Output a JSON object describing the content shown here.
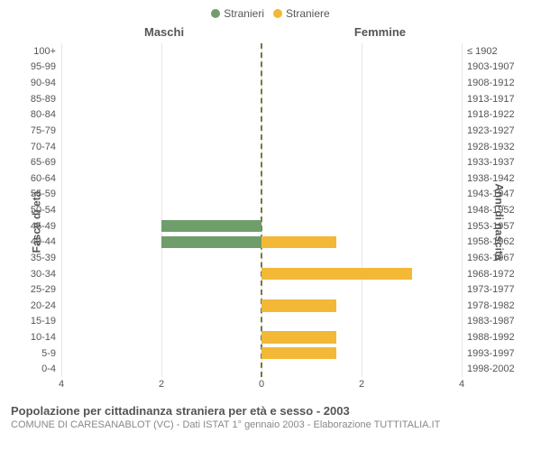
{
  "legend": {
    "series1": {
      "label": "Stranieri",
      "color": "#6f9e6a"
    },
    "series2": {
      "label": "Straniere",
      "color": "#f2b836"
    }
  },
  "columns": {
    "left": "Maschi",
    "right": "Femmine"
  },
  "axes": {
    "left_title": "Fasce di età",
    "right_title": "Anni di nascita"
  },
  "chart": {
    "type": "population-pyramid",
    "xmax": 4,
    "xticks_left": [
      4,
      2,
      0
    ],
    "xticks_right": [
      0,
      2,
      4
    ],
    "grid_color": "#e6e6e6",
    "center_color": "#777744",
    "background_color": "#ffffff",
    "bar_color_male": "#6f9e6a",
    "bar_color_female": "#f2b836",
    "rows": [
      {
        "age": "100+",
        "birth": "≤ 1902",
        "m": 0,
        "f": 0
      },
      {
        "age": "95-99",
        "birth": "1903-1907",
        "m": 0,
        "f": 0
      },
      {
        "age": "90-94",
        "birth": "1908-1912",
        "m": 0,
        "f": 0
      },
      {
        "age": "85-89",
        "birth": "1913-1917",
        "m": 0,
        "f": 0
      },
      {
        "age": "80-84",
        "birth": "1918-1922",
        "m": 0,
        "f": 0
      },
      {
        "age": "75-79",
        "birth": "1923-1927",
        "m": 0,
        "f": 0
      },
      {
        "age": "70-74",
        "birth": "1928-1932",
        "m": 0,
        "f": 0
      },
      {
        "age": "65-69",
        "birth": "1933-1937",
        "m": 0,
        "f": 0
      },
      {
        "age": "60-64",
        "birth": "1938-1942",
        "m": 0,
        "f": 0
      },
      {
        "age": "55-59",
        "birth": "1943-1947",
        "m": 0,
        "f": 0
      },
      {
        "age": "50-54",
        "birth": "1948-1952",
        "m": 0,
        "f": 0
      },
      {
        "age": "45-49",
        "birth": "1953-1957",
        "m": 2,
        "f": 0
      },
      {
        "age": "40-44",
        "birth": "1958-1962",
        "m": 2,
        "f": 1.5
      },
      {
        "age": "35-39",
        "birth": "1963-1967",
        "m": 0,
        "f": 0
      },
      {
        "age": "30-34",
        "birth": "1968-1972",
        "m": 0,
        "f": 3
      },
      {
        "age": "25-29",
        "birth": "1973-1977",
        "m": 0,
        "f": 0
      },
      {
        "age": "20-24",
        "birth": "1978-1982",
        "m": 0,
        "f": 1.5
      },
      {
        "age": "15-19",
        "birth": "1983-1987",
        "m": 0,
        "f": 0
      },
      {
        "age": "10-14",
        "birth": "1988-1992",
        "m": 0,
        "f": 1.5
      },
      {
        "age": "5-9",
        "birth": "1993-1997",
        "m": 0,
        "f": 1.5
      },
      {
        "age": "0-4",
        "birth": "1998-2002",
        "m": 0,
        "f": 0
      }
    ]
  },
  "caption": {
    "line1": "Popolazione per cittadinanza straniera per età e sesso - 2003",
    "line2": "COMUNE DI CARESANABLOT (VC) - Dati ISTAT 1° gennaio 2003 - Elaborazione TUTTITALIA.IT"
  }
}
